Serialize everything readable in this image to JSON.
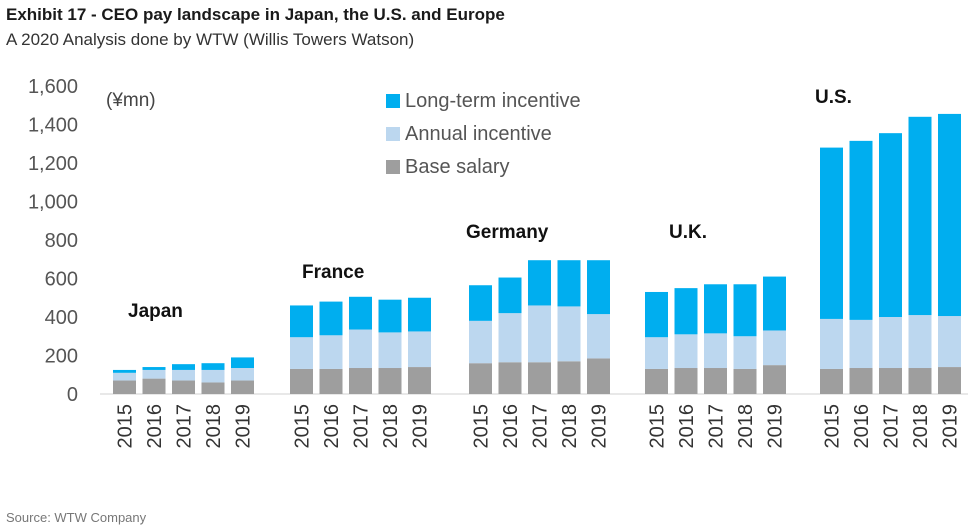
{
  "header": {
    "title": "Exhibit 17 - CEO pay landscape in Japan, the U.S. and Europe",
    "subtitle": "A 2020 Analysis done by WTW (Willis Towers Watson)"
  },
  "footer": {
    "source": "Source: WTW Company"
  },
  "colors": {
    "long_term": "#00aeef",
    "annual": "#bcd7ef",
    "base": "#9e9e9e"
  },
  "chart_data": {
    "type": "bar",
    "stacked": true,
    "unit_label": "(¥mn)",
    "ylim": [
      0,
      1600
    ],
    "yticks": [
      0,
      200,
      400,
      600,
      800,
      1000,
      1200,
      1400,
      1600
    ],
    "ytick_labels": [
      "0",
      "200",
      "400",
      "600",
      "800",
      "1,000",
      "1,200",
      "1,400",
      "1,600"
    ],
    "grid": false,
    "legend_position": "top-center",
    "legend": [
      "Long-term incentive",
      "Annual incentive",
      "Base salary"
    ],
    "years": [
      "2015",
      "2016",
      "2017",
      "2018",
      "2019"
    ],
    "groups": [
      {
        "name": "Japan",
        "base": [
          70,
          80,
          70,
          60,
          70
        ],
        "annual": [
          40,
          45,
          55,
          65,
          65
        ],
        "long_term": [
          15,
          15,
          30,
          35,
          55
        ]
      },
      {
        "name": "France",
        "base": [
          130,
          130,
          135,
          135,
          140
        ],
        "annual": [
          165,
          175,
          200,
          185,
          185
        ],
        "long_term": [
          165,
          175,
          170,
          170,
          175
        ]
      },
      {
        "name": "Germany",
        "base": [
          160,
          165,
          165,
          170,
          185
        ],
        "annual": [
          220,
          255,
          295,
          285,
          230
        ],
        "long_term": [
          185,
          185,
          235,
          240,
          280
        ]
      },
      {
        "name": "U.K.",
        "base": [
          130,
          135,
          135,
          130,
          150
        ],
        "annual": [
          165,
          175,
          180,
          170,
          180
        ],
        "long_term": [
          235,
          240,
          255,
          270,
          280
        ]
      },
      {
        "name": "U.S.",
        "base": [
          130,
          135,
          135,
          135,
          140
        ],
        "annual": [
          260,
          250,
          265,
          275,
          265
        ],
        "long_term": [
          890,
          930,
          955,
          1030,
          1050
        ]
      }
    ]
  }
}
